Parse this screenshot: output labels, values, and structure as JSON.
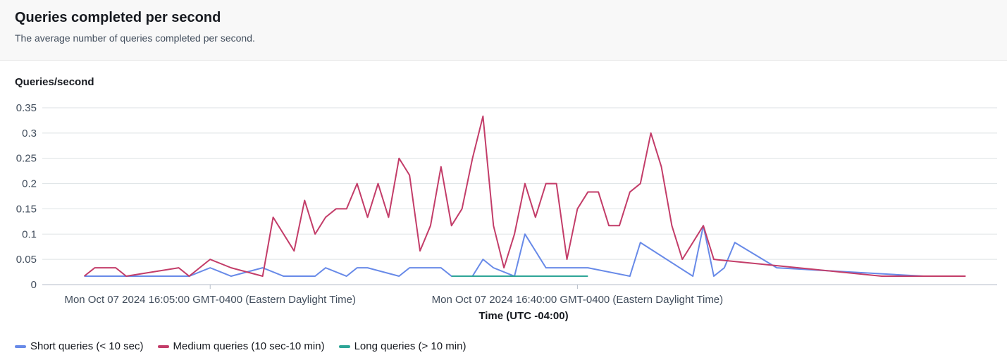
{
  "header": {
    "title": "Queries completed per second",
    "subtitle": "The average number of queries completed per second."
  },
  "chart_data": {
    "type": "line",
    "title": "Queries completed per second",
    "ylabel": "Queries/second",
    "xlabel": "Time (UTC -04:00)",
    "ylim": [
      0,
      0.35
    ],
    "yticks": [
      {
        "v": 0,
        "label": "0"
      },
      {
        "v": 0.05,
        "label": "0.05"
      },
      {
        "v": 0.1,
        "label": "0.1"
      },
      {
        "v": 0.15,
        "label": "0.15"
      },
      {
        "v": 0.2,
        "label": "0.2"
      },
      {
        "v": 0.25,
        "label": "0.25"
      },
      {
        "v": 0.3,
        "label": "0.3"
      },
      {
        "v": 0.35,
        "label": "0.35"
      }
    ],
    "xticks": [
      {
        "t": "16:05",
        "label": "Mon Oct 07 2024 16:05:00 GMT-0400 (Eastern Daylight Time)"
      },
      {
        "t": "16:40",
        "label": "Mon Oct 07 2024 16:40:00 GMT-0400 (Eastern Daylight Time)"
      }
    ],
    "xlim": [
      "15:49",
      "17:20"
    ],
    "grid": true,
    "legend_position": "bottom-left",
    "series": [
      {
        "name": "Short queries (< 10 sec)",
        "color": "#688ae8",
        "points": [
          [
            "15:53",
            0.0167
          ],
          [
            "16:03",
            0.0167
          ],
          [
            "16:05",
            0.0333
          ],
          [
            "16:07",
            0.0167
          ],
          [
            "16:10",
            0.0333
          ],
          [
            "16:12",
            0.0167
          ],
          [
            "16:15",
            0.0167
          ],
          [
            "16:16",
            0.0333
          ],
          [
            "16:18",
            0.0167
          ],
          [
            "16:19",
            0.0333
          ],
          [
            "16:20",
            0.0333
          ],
          [
            "16:23",
            0.0167
          ],
          [
            "16:24",
            0.0333
          ],
          [
            "16:27",
            0.0333
          ],
          [
            "16:28",
            0.0167
          ],
          [
            "16:30",
            0.0167
          ],
          [
            "16:31",
            0.05
          ],
          [
            "16:32",
            0.0333
          ],
          [
            "16:34",
            0.0167
          ],
          [
            "16:35",
            0.1
          ],
          [
            "16:37",
            0.0333
          ],
          [
            "16:41",
            0.0333
          ],
          [
            "16:45",
            0.0167
          ],
          [
            "16:46",
            0.0833
          ],
          [
            "16:51",
            0.0167
          ],
          [
            "16:52",
            0.1167
          ],
          [
            "16:53",
            0.0167
          ],
          [
            "16:54",
            0.0333
          ],
          [
            "16:55",
            0.0833
          ],
          [
            "16:59",
            0.0333
          ],
          [
            "17:13",
            0.0167
          ]
        ]
      },
      {
        "name": "Medium queries (10 sec-10 min)",
        "color": "#c33d69",
        "points": [
          [
            "15:53",
            0.0167
          ],
          [
            "15:54",
            0.0333
          ],
          [
            "15:56",
            0.0333
          ],
          [
            "15:57",
            0.0167
          ],
          [
            "16:02",
            0.0333
          ],
          [
            "16:03",
            0.0167
          ],
          [
            "16:05",
            0.05
          ],
          [
            "16:07",
            0.0333
          ],
          [
            "16:10",
            0.0167
          ],
          [
            "16:11",
            0.1333
          ],
          [
            "16:13",
            0.0667
          ],
          [
            "16:14",
            0.1667
          ],
          [
            "16:15",
            0.1
          ],
          [
            "16:16",
            0.1333
          ],
          [
            "16:17",
            0.15
          ],
          [
            "16:18",
            0.15
          ],
          [
            "16:19",
            0.2
          ],
          [
            "16:20",
            0.1333
          ],
          [
            "16:21",
            0.2
          ],
          [
            "16:22",
            0.1333
          ],
          [
            "16:23",
            0.25
          ],
          [
            "16:24",
            0.2167
          ],
          [
            "16:25",
            0.0667
          ],
          [
            "16:26",
            0.1167
          ],
          [
            "16:27",
            0.2333
          ],
          [
            "16:28",
            0.1167
          ],
          [
            "16:29",
            0.15
          ],
          [
            "16:30",
            0.25
          ],
          [
            "16:31",
            0.3333
          ],
          [
            "16:32",
            0.1167
          ],
          [
            "16:33",
            0.0333
          ],
          [
            "16:34",
            0.1
          ],
          [
            "16:35",
            0.2
          ],
          [
            "16:36",
            0.1333
          ],
          [
            "16:37",
            0.2
          ],
          [
            "16:38",
            0.2
          ],
          [
            "16:39",
            0.05
          ],
          [
            "16:40",
            0.15
          ],
          [
            "16:41",
            0.1833
          ],
          [
            "16:42",
            0.1833
          ],
          [
            "16:43",
            0.1167
          ],
          [
            "16:44",
            0.1167
          ],
          [
            "16:45",
            0.1833
          ],
          [
            "16:46",
            0.2
          ],
          [
            "16:47",
            0.3
          ],
          [
            "16:48",
            0.2333
          ],
          [
            "16:49",
            0.1167
          ],
          [
            "16:50",
            0.05
          ],
          [
            "16:52",
            0.1167
          ],
          [
            "16:53",
            0.05
          ],
          [
            "17:09",
            0.0167
          ],
          [
            "17:17",
            0.0167
          ]
        ]
      },
      {
        "name": "Long queries (> 10 min)",
        "color": "#2ea597",
        "points": [
          [
            "16:28",
            0.0167
          ],
          [
            "16:41",
            0.0167
          ]
        ]
      }
    ]
  }
}
